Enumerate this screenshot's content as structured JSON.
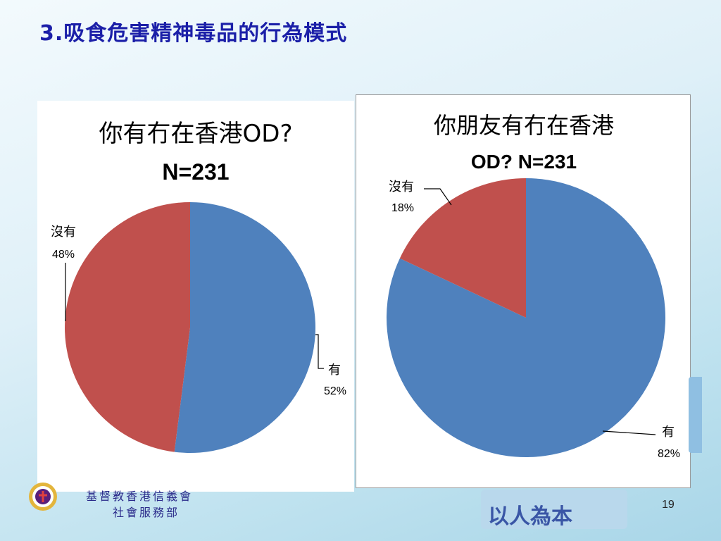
{
  "slide": {
    "title": "3.吸食危害精神毒品的行為模式",
    "page_number": "19",
    "org_line1": "基督教香港信義會",
    "org_line2": "社會服務部",
    "motto": "以人為本"
  },
  "colors": {
    "title": "#1b1fa8",
    "series_yes": "#4f81bd",
    "series_no": "#c0504d"
  },
  "chart_data": [
    {
      "type": "pie",
      "title_line1": "你有冇在香港OD?",
      "title_line2": "N=231",
      "slices": [
        {
          "label": "有",
          "value": 52,
          "value_text": "52%",
          "color": "#4f81bd"
        },
        {
          "label": "沒有",
          "value": 48,
          "value_text": "48%",
          "color": "#c0504d"
        }
      ]
    },
    {
      "type": "pie",
      "title_line1": "你朋友有冇在香港",
      "title_line2": "OD? N=231",
      "slices": [
        {
          "label": "有",
          "value": 82,
          "value_text": "82%",
          "color": "#4f81bd"
        },
        {
          "label": "沒有",
          "value": 18,
          "value_text": "18%",
          "color": "#c0504d"
        }
      ]
    }
  ]
}
